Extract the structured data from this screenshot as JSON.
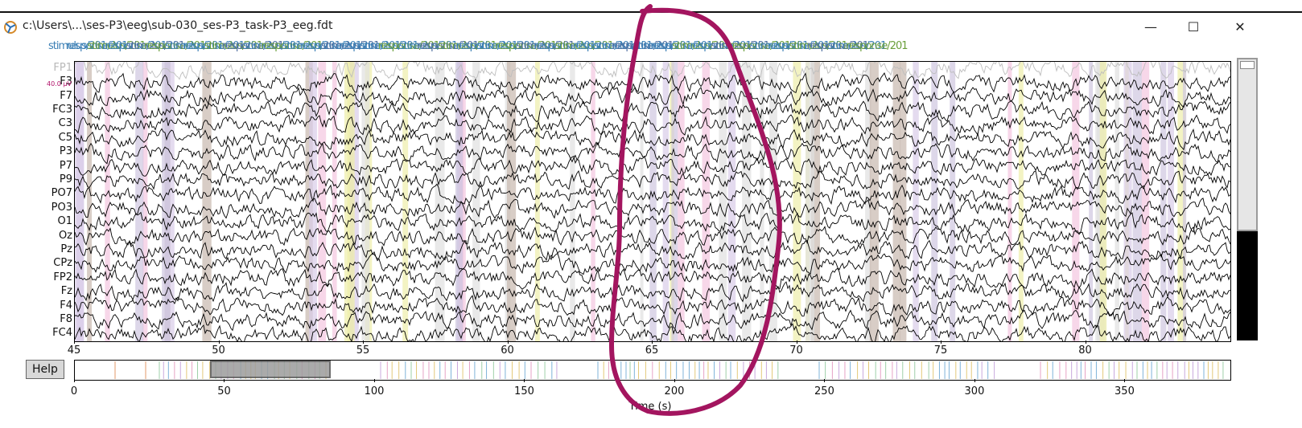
{
  "window": {
    "title": "c:\\Users\\...\\ses-P3\\eeg\\sub-030_ses-P3_task-P3_eeg.fdt",
    "minimize_glyph": "—",
    "maximize_glyph": "☐",
    "close_glyph": "✕",
    "app_icon": "matplotlib-mne-icon"
  },
  "annotations": {
    "strip_text": [
      "stimulus/201",
      "response/201",
      "stimulus/201",
      "response/201",
      "stimulus/201",
      "response/201",
      "stimulus/201",
      "response/201",
      "stimulus/201",
      "response/201",
      "stimulus/201",
      "response/201",
      "stimulus/201",
      "response/201",
      "stimulus/201",
      "response/201",
      "stimulus/201",
      "response/201",
      "stimulus/201",
      "response/201",
      "stimulus/201",
      "response/201",
      "stimulus/201",
      "response/201",
      "stimulus/201",
      "response/201",
      "stimulus/201",
      "response/201",
      "stimulus/201",
      "response/201",
      "stimulus/201",
      "response/201",
      "stimulus/201",
      "response/201",
      "stimulus/201",
      "response/201",
      "stimulus/201",
      "response/201",
      "stimulus/201",
      "response/201",
      "stimulus/201",
      "response/201"
    ],
    "span_colors": [
      "#c8b8ae",
      "#d8cce8",
      "#eeeeaa",
      "#f3c6e0",
      "#cfc6e0",
      "#e0e0e0"
    ]
  },
  "channels": [
    "FP1",
    "F3",
    "F7",
    "FC3",
    "C3",
    "C5",
    "P3",
    "P7",
    "P9",
    "PO7",
    "PO3",
    "O1",
    "Oz",
    "Pz",
    "CPz",
    "FP2",
    "Fz",
    "F4",
    "F8",
    "FC4"
  ],
  "scale_label": "40.0 µV",
  "main_axis": {
    "xmin": 45,
    "xmax": 85,
    "ticks": [
      45,
      50,
      55,
      60,
      65,
      70,
      75,
      80
    ]
  },
  "overview_axis": {
    "xmin": 0,
    "xmax": 385,
    "ticks": [
      0,
      50,
      100,
      150,
      200,
      250,
      300,
      350
    ],
    "xlabel": "Time (s)"
  },
  "help_label": "Help",
  "colors": {
    "pen_annotation": "#a3155f",
    "trace": "#000000",
    "bad_trace": "#bdbdbd"
  }
}
